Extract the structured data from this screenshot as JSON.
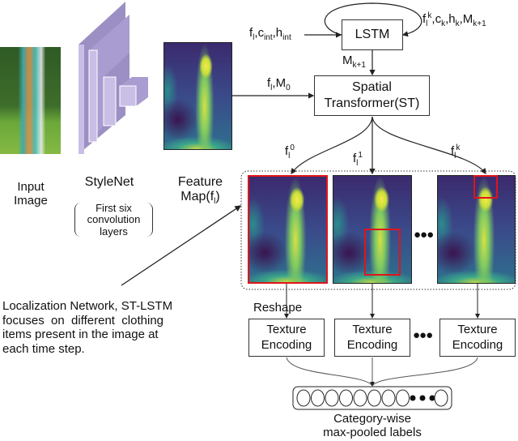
{
  "input": {
    "line1": "Input",
    "line2": "Image"
  },
  "stylenet": {
    "title": "StyleNet",
    "note1": "First six",
    "note2": "convolution",
    "note3": "layers",
    "color": "#b4a7d6"
  },
  "feature_map": {
    "line1": "Feature",
    "line2": "Map(f",
    "sub": "l",
    "close": ")"
  },
  "lstm": {
    "label": "LSTM",
    "input": {
      "f": "f",
      "f_sub": "l",
      "c": ",c",
      "c_sub": "int",
      "h": ",h",
      "h_sub": "int"
    },
    "loop": {
      "f": "f",
      "f_sub": "l",
      "f_sup": "k",
      "c": ",c",
      "c_sub": "k",
      "h": ",h",
      "h_sub": "k",
      "m": ",M",
      "m_sub": "k+1"
    },
    "output": {
      "m": "M",
      "m_sub": "k+1"
    }
  },
  "st": {
    "line1": "Spatial",
    "line2": "Transformer(ST)",
    "input": {
      "f": "f",
      "f_sub": "l",
      "m": ",M",
      "m_sub": "0"
    }
  },
  "branches": [
    {
      "f": "f",
      "sub": "l",
      "sup": "0"
    },
    {
      "f": "f",
      "sub": "l",
      "sup": "1"
    },
    {
      "f": "f",
      "sub": "l",
      "sup": "k"
    }
  ],
  "ellipsis": "●●●",
  "localization_text": [
    "Localization Network, ST-LSTM",
    "focuses  on  different  clothing",
    "items present in the image at",
    "each time step."
  ],
  "reshape": "Reshape",
  "texture_boxes": [
    {
      "line1": "Texture",
      "line2": "Encoding"
    },
    {
      "line1": "Texture",
      "line2": "Encoding"
    },
    {
      "line1": "Texture",
      "line2": "Encoding"
    }
  ],
  "labels": {
    "line1": "Category-wise",
    "line2": "max-pooled labels"
  },
  "highlight_color": "#e0141a"
}
